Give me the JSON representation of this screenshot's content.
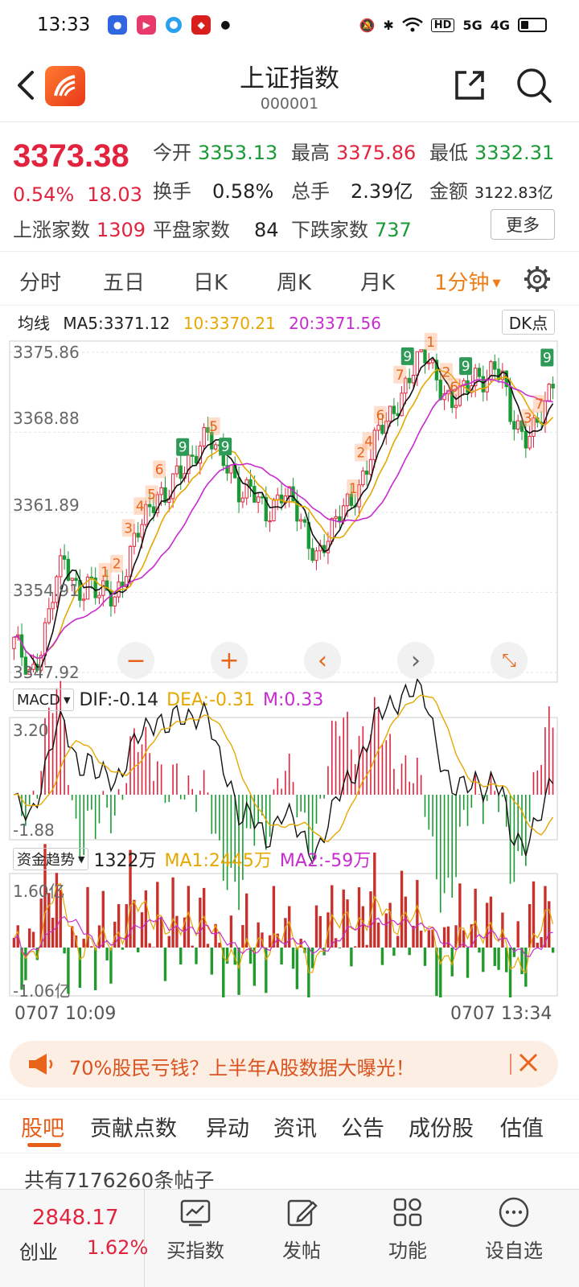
{
  "status": {
    "time": "13:33",
    "signal1": "HD",
    "signal2": "5G",
    "signal3": "4G"
  },
  "nav": {
    "title": "上证指数",
    "code": "000001"
  },
  "quote": {
    "price": "3373.38",
    "change_pct": "0.54%",
    "change": "18.03",
    "open_label": "今开",
    "open": "3353.13",
    "high_label": "最高",
    "high": "3375.86",
    "low_label": "最低",
    "low": "3332.31",
    "turnover_label": "换手",
    "turnover": "0.58%",
    "volume_label": "总手",
    "volume": "2.39亿",
    "amount_label": "金额",
    "amount": "3122.83亿",
    "up_label": "上涨家数",
    "up": "1309",
    "flat_label": "平盘家数",
    "flat": "84",
    "down_label": "下跌家数",
    "down": "737",
    "more": "更多"
  },
  "period_tabs": [
    "分时",
    "五日",
    "日K",
    "周K",
    "月K",
    "1分钟"
  ],
  "ma": {
    "label": "均线",
    "ma5": "MA5:3371.12",
    "ma10": "10:3370.21",
    "ma20": "20:3371.56",
    "dk": "DK点"
  },
  "price_axis": [
    "3375.86",
    "3368.88",
    "3361.89",
    "3354.91",
    "3347.92"
  ],
  "macd": {
    "select": "MACD",
    "dif": "DIF:-0.14",
    "dea": "DEA:-0.31",
    "m": "M:0.33",
    "top": "3.20",
    "bottom": "-1.88"
  },
  "fund": {
    "select": "资金趋势",
    "value": "1322万",
    "ma1": "MA1:2445万",
    "ma2": "MA2:-59万",
    "top": "1.60亿",
    "bottom": "-1.06亿"
  },
  "time_axis": {
    "start": "0707 10:09",
    "end": "0707 13:34"
  },
  "banner": {
    "text": "70%股民亏钱？上半年A股数据大曝光！"
  },
  "bottom_tabs": [
    "股吧",
    "贡献点数",
    "异动",
    "资讯",
    "公告",
    "成份股",
    "估值"
  ],
  "post_count": "共有7176260条帖子",
  "footer": {
    "price": "2848.17",
    "name": "创业",
    "pct": "1.62%",
    "items": [
      "买指数",
      "发帖",
      "功能",
      "设自选"
    ]
  },
  "colors": {
    "up": "#e2233e",
    "down": "#1a9a35",
    "accent": "#ee7d16",
    "ma5": "#111111",
    "ma10": "#e6a800",
    "ma20": "#c72bd0"
  },
  "chart_data": {
    "type": "candlestick",
    "y_axis": [
      3347.92,
      3354.91,
      3361.89,
      3368.88,
      3375.86
    ],
    "x_range": [
      "0707 10:09",
      "0707 13:34"
    ],
    "closes": [
      3350.5,
      3349.2,
      3347.9,
      3349.6,
      3352.3,
      3355.8,
      3357.9,
      3356.1,
      3354.9,
      3355.5,
      3354.4,
      3355.2,
      3354.8,
      3356.2,
      3358.4,
      3360.6,
      3362.3,
      3363.9,
      3363.1,
      3364.5,
      3365.3,
      3366.6,
      3368.1,
      3369.0,
      3366.8,
      3366.2,
      3365.4,
      3363.6,
      3364.1,
      3362.5,
      3361.4,
      3363.0,
      3364.2,
      3362.7,
      3360.8,
      3359.1,
      3358.4,
      3359.6,
      3360.5,
      3362.0,
      3362.8,
      3364.4,
      3366.2,
      3368.3,
      3369.5,
      3370.7,
      3372.4,
      3373.8,
      3374.9,
      3375.5,
      3374.1,
      3372.6,
      3371.3,
      3371.9,
      3373.0,
      3374.2,
      3373.6,
      3374.5,
      3373.3,
      3370.2,
      3369.4,
      3368.6,
      3369.3,
      3370.6,
      3373.38
    ]
  }
}
